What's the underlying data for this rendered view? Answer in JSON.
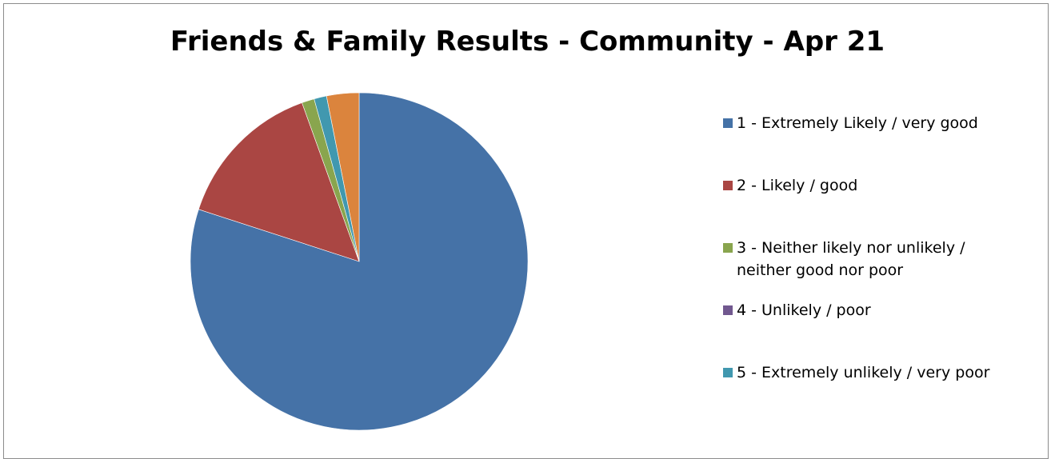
{
  "chart_data": {
    "type": "pie",
    "title": "Friends & Family Results - Community - Apr 21",
    "legend_position": "right",
    "slices": [
      {
        "label": "1 - Extremely Likely / very good",
        "value": 80,
        "color": "#4572A7"
      },
      {
        "label": "2 - Likely / good",
        "value": 14.5,
        "color": "#AA4643"
      },
      {
        "label": "3 - Neither likely nor unlikely / neither good nor poor",
        "value": 1.2,
        "color": "#89A54E"
      },
      {
        "label": "4 - Unlikely / poor",
        "value": 0,
        "color": "#71588F"
      },
      {
        "label": "5 - Extremely unlikely / very poor",
        "value": 1.2,
        "color": "#4198AF"
      },
      {
        "label": "",
        "value": 3.1,
        "color": "#DB843D"
      }
    ]
  },
  "legend": {
    "items": [
      {
        "label": "1 - Extremely Likely / very good",
        "color": "#4572A7"
      },
      {
        "label": "2 - Likely / good",
        "color": "#AA4643"
      },
      {
        "label": "3 - Neither likely nor unlikely /\nneither good nor poor",
        "color": "#89A54E"
      },
      {
        "label": "4 - Unlikely / poor",
        "color": "#71588F"
      },
      {
        "label": "5 - Extremely unlikely / very poor",
        "color": "#4198AF"
      }
    ]
  }
}
